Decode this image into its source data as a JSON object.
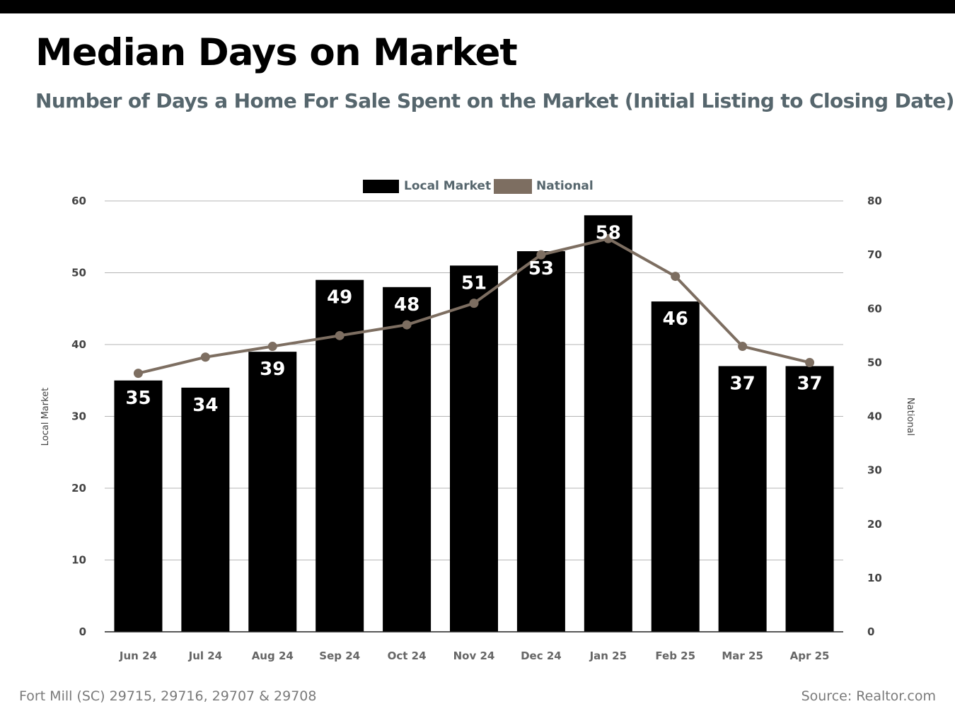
{
  "header": {
    "title": "Median Days on Market",
    "subtitle": "Number of Days a Home For Sale Spent on the Market (Initial Listing to Closing Date)"
  },
  "footer": {
    "location": "Fort Mill (SC) 29715, 29716, 29707 & 29708",
    "source": "Source: Realtor.com"
  },
  "colors": {
    "local_bar": "#000000",
    "national_line": "#7d6e61",
    "subtitle": "#56666d",
    "gridline": "#b5b5b5"
  },
  "chart_data": {
    "type": "bar",
    "categories": [
      "Jun 24",
      "Jul 24",
      "Aug 24",
      "Sep 24",
      "Oct 24",
      "Nov 24",
      "Dec 24",
      "Jan 25",
      "Feb 25",
      "Mar 25",
      "Apr 25"
    ],
    "series": [
      {
        "name": "Local Market",
        "type": "bar",
        "axis": "left",
        "values": [
          35,
          34,
          39,
          49,
          48,
          51,
          53,
          58,
          46,
          37,
          37
        ]
      },
      {
        "name": "National",
        "type": "line",
        "axis": "right",
        "values": [
          48,
          51,
          53,
          55,
          57,
          61,
          70,
          73,
          66,
          53,
          50
        ]
      }
    ],
    "ylabel": "Local Market",
    "ylabel_right": "National",
    "ylim": [
      0,
      60
    ],
    "ylim_right": [
      0,
      80
    ],
    "yticks": [
      "0",
      "10",
      "20",
      "30",
      "40",
      "50",
      "60"
    ],
    "yticks_right": [
      "0",
      "10",
      "20",
      "30",
      "40",
      "50",
      "60",
      "70",
      "80"
    ],
    "legend": "top-center",
    "grid": true
  }
}
